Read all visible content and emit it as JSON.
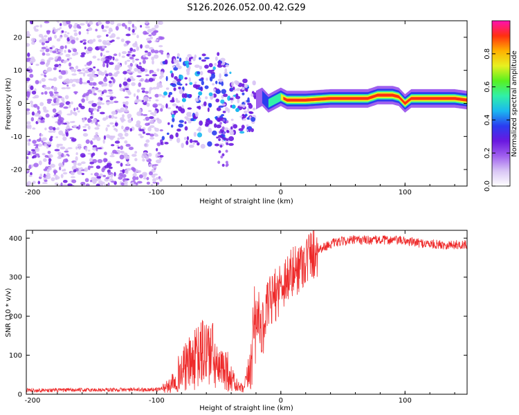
{
  "title": "S126.2026.052.00.42.G29",
  "colors": {
    "snr_line": "#ee2a2a",
    "cmap": [
      "#ffffff",
      "#d9c6f5",
      "#a060ee",
      "#6a18e0",
      "#2a3df0",
      "#1ab8f0",
      "#30f0a8",
      "#58f020",
      "#e8f020",
      "#ffb000",
      "#ff3010",
      "#ff10b0"
    ]
  },
  "chart_data": [
    {
      "type": "heatmap",
      "title": "S126.2026.052.00.42.G29",
      "xlabel": "Height of straight line (km)",
      "ylabel": "Frequency (Hz)",
      "xlim": [
        -205,
        150
      ],
      "ylim": [
        -25,
        25
      ],
      "xticks": [
        -200,
        -100,
        0,
        100
      ],
      "yticks": [
        -20,
        -10,
        0,
        10,
        20
      ],
      "colorbar": {
        "label": "Normalized spectral amplitude",
        "range": [
          0,
          1
        ],
        "ticks": [
          0.0,
          0.2,
          0.4,
          0.6,
          0.8
        ]
      },
      "track": [
        [
          -95,
          3
        ],
        [
          -85,
          2
        ],
        [
          -70,
          3
        ],
        [
          -55,
          1
        ],
        [
          -40,
          -1
        ],
        [
          -32,
          -2
        ],
        [
          -25,
          -1
        ],
        [
          -20,
          1
        ],
        [
          -15,
          2
        ],
        [
          -10,
          0
        ],
        [
          -5,
          1
        ],
        [
          0,
          2
        ],
        [
          5,
          1
        ],
        [
          20,
          1
        ],
        [
          40,
          1.5
        ],
        [
          60,
          1.5
        ],
        [
          70,
          1.5
        ],
        [
          78,
          2.5
        ],
        [
          90,
          2.5
        ],
        [
          95,
          2
        ],
        [
          100,
          0
        ],
        [
          105,
          1.5
        ],
        [
          120,
          1.5
        ],
        [
          140,
          1.5
        ],
        [
          150,
          1
        ]
      ]
    },
    {
      "type": "line",
      "title": "",
      "xlabel": "Height of straight line (km)",
      "ylabel": "SNR (10 * v/v)",
      "xlim": [
        -205,
        150
      ],
      "ylim": [
        0,
        420
      ],
      "xticks": [
        -200,
        -100,
        0,
        100
      ],
      "yticks": [
        0,
        100,
        200,
        300,
        400
      ],
      "series": [
        {
          "name": "SNR",
          "x": [
            -205,
            -100,
            -90,
            -85,
            -80,
            -75,
            -70,
            -65,
            -60,
            -55,
            -50,
            -45,
            -40,
            -35,
            -30,
            -25,
            -20,
            -15,
            -10,
            -5,
            0,
            5,
            10,
            15,
            20,
            25,
            30,
            40,
            50,
            60,
            70,
            80,
            90,
            100,
            110,
            120,
            130,
            140,
            150
          ],
          "y": [
            10,
            12,
            20,
            45,
            60,
            75,
            85,
            100,
            115,
            100,
            55,
            75,
            40,
            20,
            12,
            60,
            220,
            160,
            230,
            250,
            280,
            300,
            310,
            330,
            345,
            360,
            370,
            385,
            392,
            395,
            395,
            395,
            395,
            393,
            388,
            385,
            383,
            383,
            383
          ]
        }
      ]
    }
  ]
}
